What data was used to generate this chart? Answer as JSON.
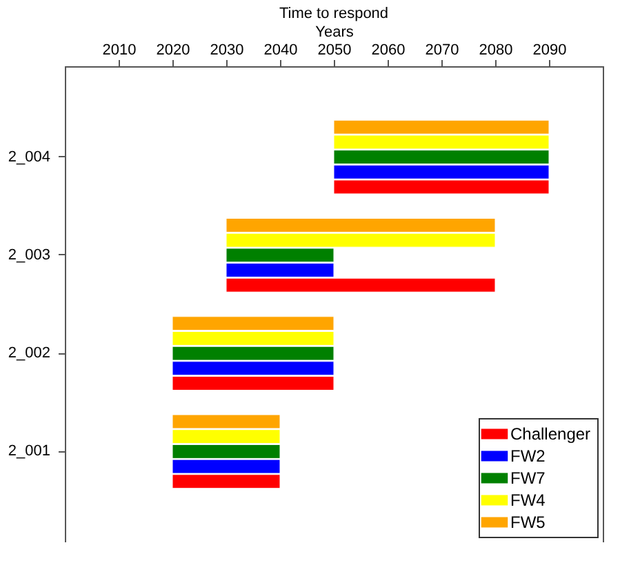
{
  "chart_data": {
    "type": "bar",
    "orientation": "horizontal",
    "title": "Time to respond",
    "xlabel": "Years",
    "categories": [
      "2_004",
      "2_003",
      "2_002",
      "2_001"
    ],
    "series": [
      {
        "name": "Challenger",
        "color": "#ff0000",
        "base": [
          2050,
          2030,
          2020,
          2020
        ],
        "values": [
          40,
          50,
          30,
          20
        ]
      },
      {
        "name": "FW2",
        "color": "#0000ff",
        "base": [
          2050,
          2030,
          2020,
          2020
        ],
        "values": [
          40,
          20,
          30,
          20
        ]
      },
      {
        "name": "FW7",
        "color": "#008000",
        "base": [
          2050,
          2030,
          2020,
          2020
        ],
        "values": [
          40,
          20,
          30,
          20
        ]
      },
      {
        "name": "FW4",
        "color": "#ffff00",
        "base": [
          2050,
          2030,
          2020,
          2020
        ],
        "values": [
          40,
          50,
          30,
          20
        ]
      },
      {
        "name": "FW5",
        "color": "#ffa500",
        "base": [
          2050,
          2030,
          2020,
          2020
        ],
        "values": [
          40,
          50,
          30,
          20
        ]
      }
    ],
    "xlim": [
      2000,
      2100
    ],
    "xticks": [
      2010,
      2020,
      2030,
      2040,
      2050,
      2060,
      2070,
      2080,
      2090
    ],
    "grid": false,
    "legend": "bottom right"
  }
}
